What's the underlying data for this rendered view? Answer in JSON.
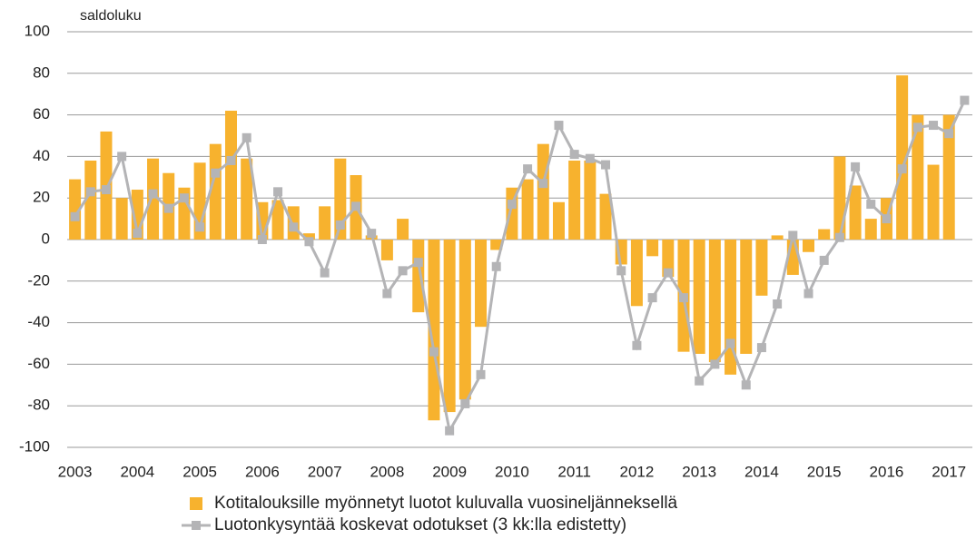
{
  "chart_data": {
    "type": "bar-line",
    "ylabel": "saldoluku",
    "categories": [
      "2003",
      null,
      null,
      null,
      "2004",
      null,
      null,
      null,
      "2005",
      null,
      null,
      null,
      "2006",
      null,
      null,
      null,
      "2007",
      null,
      null,
      null,
      "2008",
      null,
      null,
      null,
      "2009",
      null,
      null,
      null,
      "2010",
      null,
      null,
      null,
      "2011",
      null,
      null,
      null,
      "2012",
      null,
      null,
      null,
      "2013",
      null,
      null,
      null,
      "2014",
      null,
      null,
      null,
      "2015",
      null,
      null,
      null,
      "2016",
      null,
      null,
      null,
      "2017",
      null
    ],
    "series": [
      {
        "name": "Kotitalouksille myönnetyt luotot kuluvalla vuosineljänneksellä",
        "type": "bar",
        "color": "#f7b22e",
        "values": [
          29,
          38,
          52,
          20,
          24,
          39,
          32,
          25,
          37,
          46,
          62,
          39,
          18,
          19,
          16,
          3,
          16,
          39,
          31,
          2,
          -10,
          10,
          -35,
          -87,
          -83,
          -77,
          -42,
          -5,
          25,
          29,
          46,
          18,
          38,
          38,
          22,
          -12,
          -32,
          -8,
          -18,
          -54,
          -55,
          -59,
          -65,
          -55,
          -27,
          2,
          -17,
          -6,
          5,
          40,
          26,
          10,
          20,
          79,
          60,
          36,
          60,
          null
        ]
      },
      {
        "name": "Luotonkysyntää koskevat odotukset (3 kk:lla edistetty)",
        "type": "line",
        "color": "#b4b4b6",
        "values": [
          11,
          23,
          24,
          40,
          3,
          22,
          15,
          20,
          6,
          32,
          38,
          49,
          0,
          23,
          6,
          -1,
          -16,
          7,
          16,
          3,
          -26,
          -15,
          -11,
          -54,
          -92,
          -79,
          -65,
          -13,
          17,
          34,
          27,
          55,
          41,
          39,
          36,
          -15,
          -51,
          -28,
          -16,
          -28,
          -68,
          -60,
          -50,
          -70,
          -52,
          -31,
          2,
          -26,
          -10,
          1,
          35,
          17,
          10,
          34,
          54,
          55,
          51,
          67
        ]
      }
    ],
    "ylim": [
      -100,
      100
    ],
    "yticks": [
      -100,
      -80,
      -60,
      -40,
      -20,
      0,
      20,
      40,
      60,
      80,
      100
    ],
    "grid": true,
    "legend": "bottom"
  }
}
